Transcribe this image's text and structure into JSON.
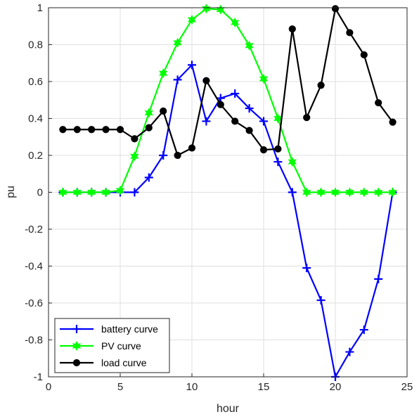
{
  "chart_data": {
    "type": "line",
    "xlabel": "hour",
    "ylabel": "pu",
    "xlim": [
      0,
      25
    ],
    "ylim": [
      -1,
      1
    ],
    "xticks": [
      "0",
      "5",
      "10",
      "15",
      "20",
      "25"
    ],
    "yticks": [
      "-1",
      "-0.8",
      "-0.6",
      "-0.4",
      "-0.2",
      "0",
      "0.2",
      "0.4",
      "0.6",
      "0.8",
      "1"
    ],
    "grid": true,
    "legend_position": "bottom-left",
    "x": [
      1,
      2,
      3,
      4,
      5,
      6,
      7,
      8,
      9,
      10,
      11,
      12,
      13,
      14,
      15,
      16,
      17,
      18,
      19,
      20,
      21,
      22,
      23,
      24
    ],
    "series": [
      {
        "name": "battery curve",
        "color": "#0000ff",
        "marker": "plus",
        "values": [
          0,
          0,
          0,
          0,
          0,
          0,
          0.08,
          0.2,
          0.61,
          0.69,
          0.385,
          0.51,
          0.535,
          0.455,
          0.385,
          0.165,
          0,
          -0.41,
          -0.585,
          -1,
          -0.865,
          -0.745,
          -0.47,
          0
        ]
      },
      {
        "name": "PV curve",
        "color": "#00ff00",
        "marker": "hexagram",
        "values": [
          0,
          0,
          0,
          0,
          0.01,
          0.195,
          0.43,
          0.645,
          0.81,
          0.935,
          0.995,
          0.99,
          0.92,
          0.795,
          0.615,
          0.4,
          0.165,
          0,
          0,
          0,
          0,
          0,
          0,
          0
        ]
      },
      {
        "name": "load curve",
        "color": "#000000",
        "marker": "circle",
        "values": [
          0.34,
          0.34,
          0.34,
          0.34,
          0.34,
          0.29,
          0.35,
          0.44,
          0.2,
          0.24,
          0.605,
          0.475,
          0.385,
          0.335,
          0.23,
          0.235,
          0.885,
          0.405,
          0.58,
          0.995,
          0.865,
          0.745,
          0.485,
          0.38
        ]
      }
    ]
  }
}
